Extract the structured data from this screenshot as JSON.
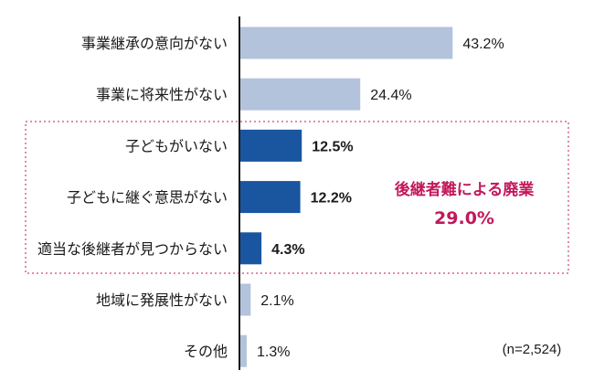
{
  "chart_data": {
    "type": "bar",
    "orientation": "horizontal",
    "categories": [
      "事業継承の意向がない",
      "事業に将来性がない",
      "子どもがいない",
      "子どもに継ぐ意思がない",
      "適当な後継者が見つからない",
      "地域に発展性がない",
      "その他"
    ],
    "values": [
      43.2,
      24.4,
      12.5,
      12.2,
      4.3,
      2.1,
      1.3
    ],
    "value_labels": [
      "43.2%",
      "24.4%",
      "12.5%",
      "12.2%",
      "4.3%",
      "2.1%",
      "1.3%"
    ],
    "highlighted": [
      false,
      false,
      true,
      true,
      true,
      false,
      false
    ],
    "unit": "%",
    "xlim": [
      0,
      45
    ],
    "colors": {
      "normal": "#b3c3dc",
      "highlight": "#1a56a0",
      "annotation": "#c2185b"
    },
    "annotation": {
      "label": "後継者難による廃業",
      "value": "29.0%"
    },
    "note": "(n=2,524)"
  }
}
